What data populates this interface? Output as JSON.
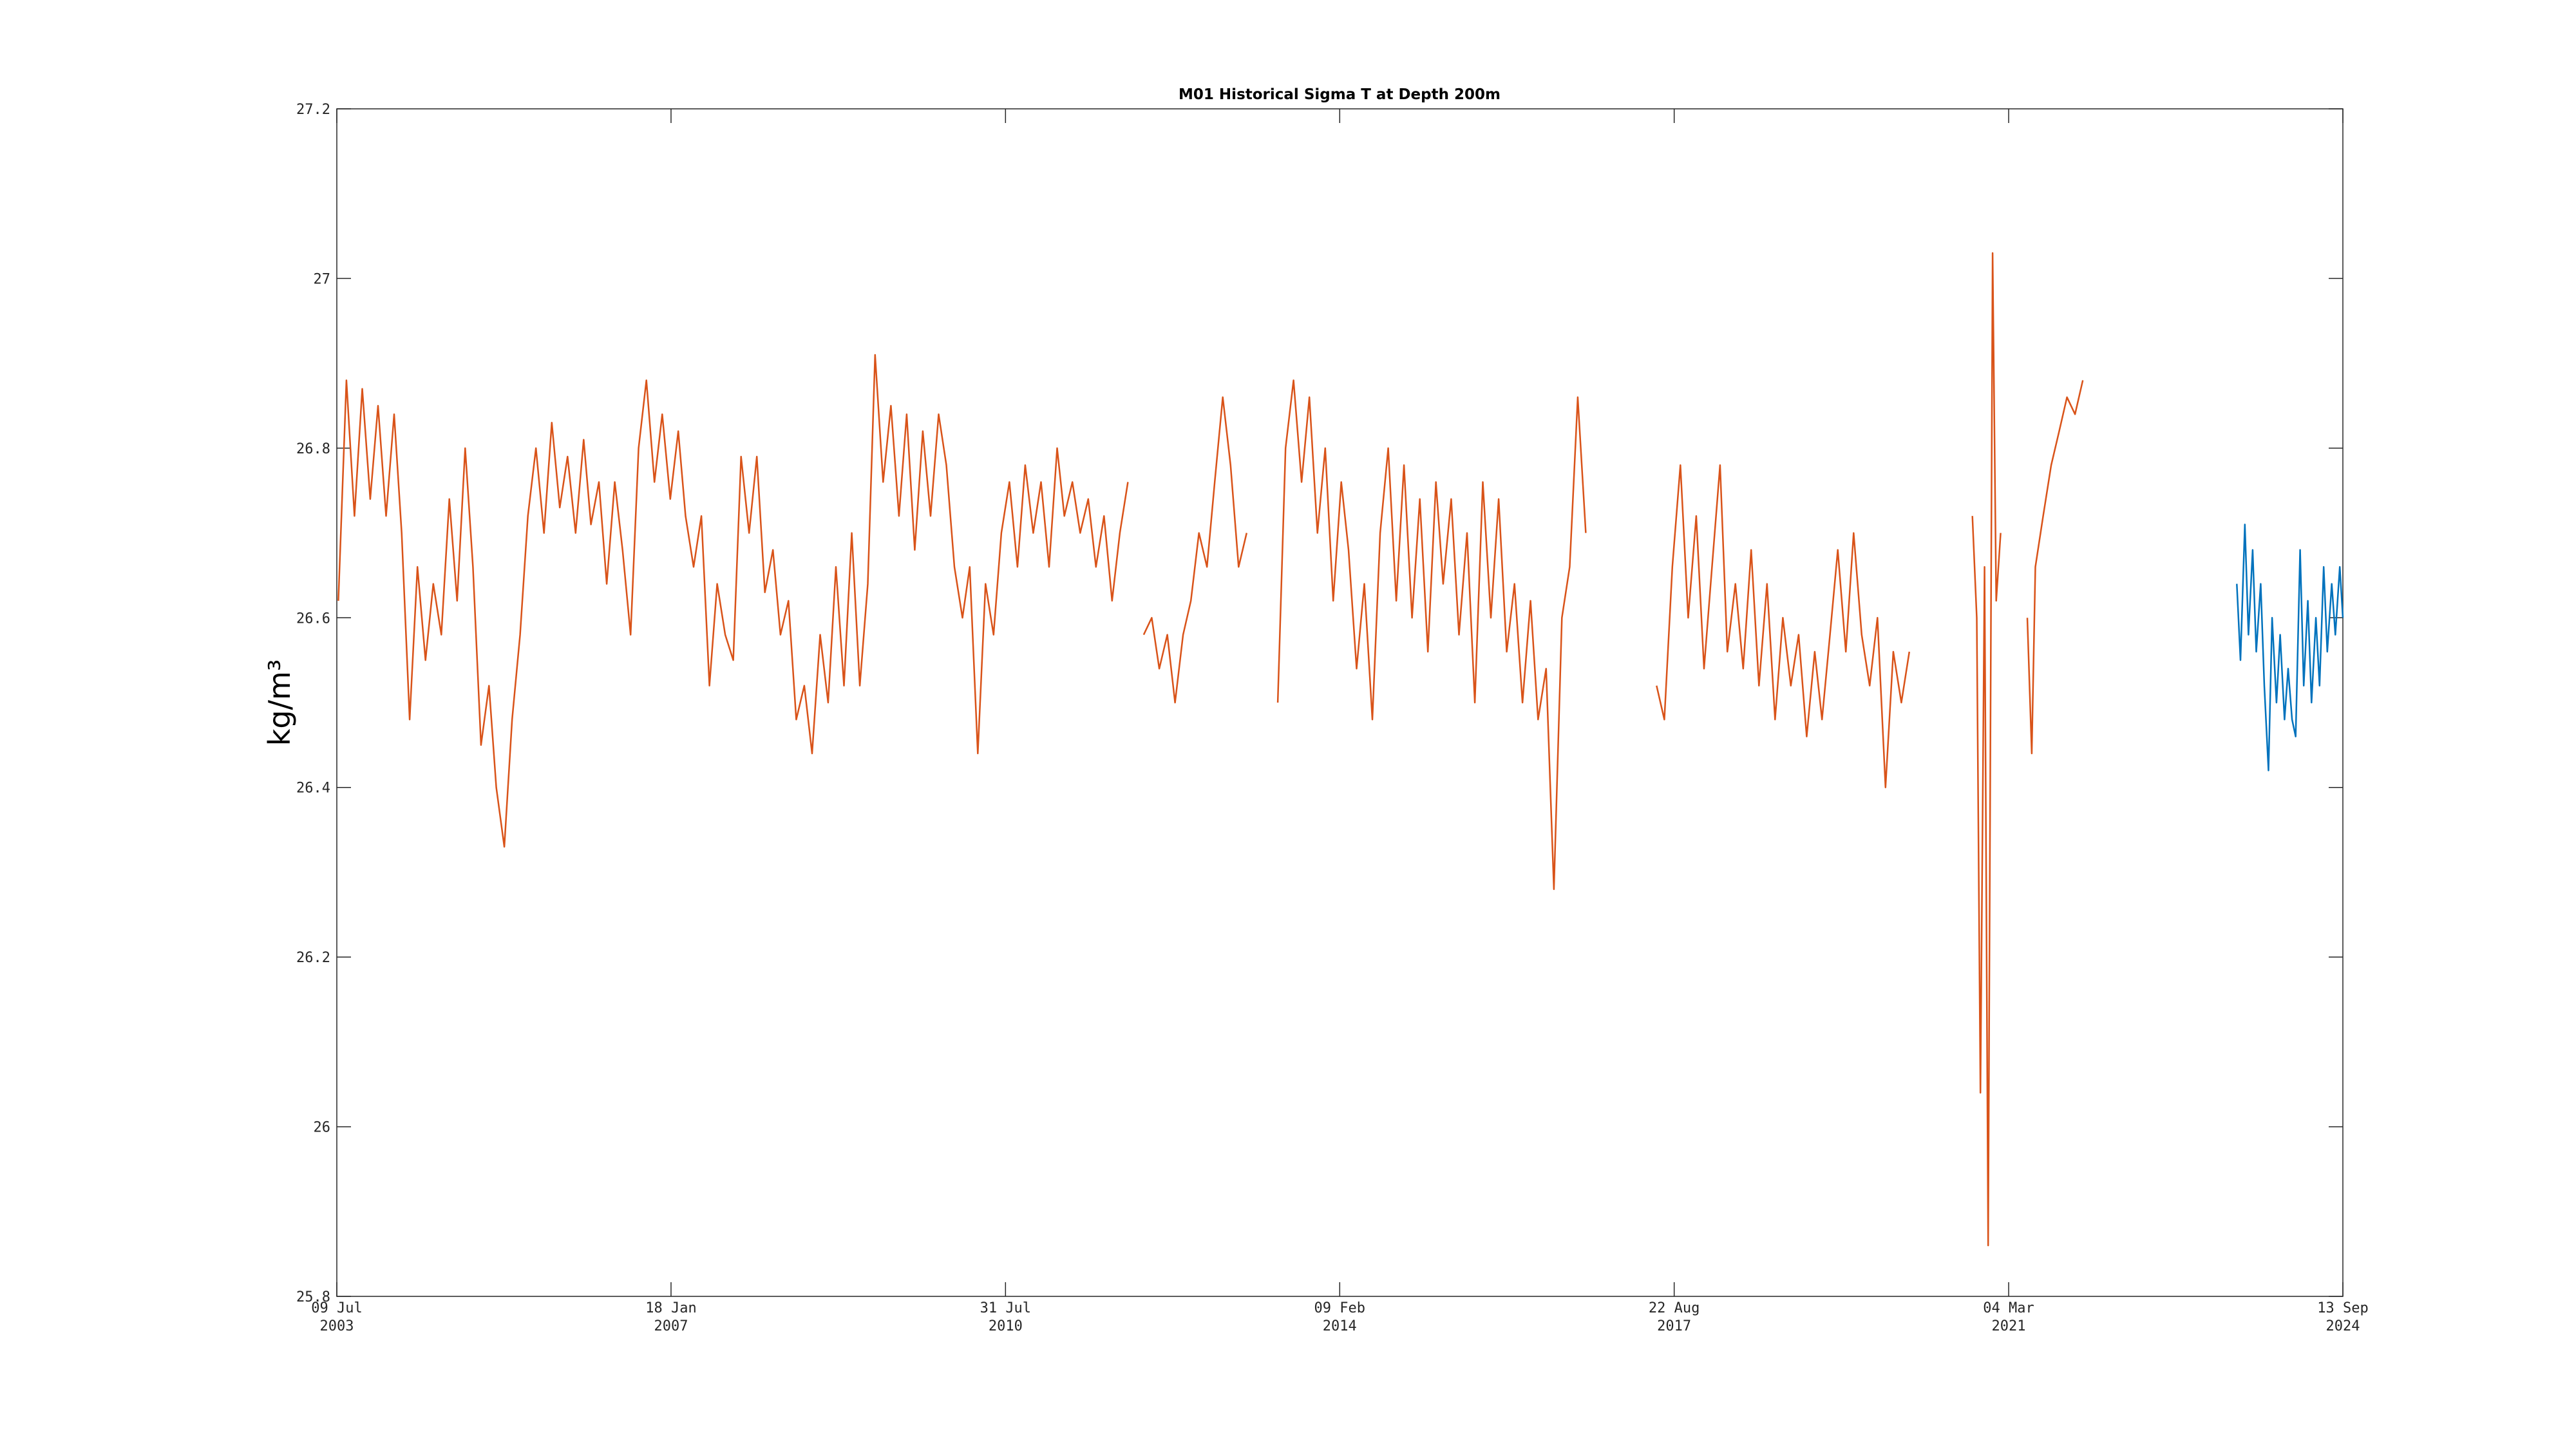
{
  "chart_data": {
    "type": "line",
    "title": "M01 Historical Sigma T at Depth 200m",
    "y_label": "kg/m³",
    "xlim": [
      "2003-07-09",
      "2024-09-13"
    ],
    "xticks": [
      {
        "value": "2003-07-09",
        "label": "09 Jul 2003"
      },
      {
        "value": "2007-01-18",
        "label": "18 Jan 2007"
      },
      {
        "value": "2010-07-31",
        "label": "31 Jul 2010"
      },
      {
        "value": "2014-02-09",
        "label": "09 Feb 2014"
      },
      {
        "value": "2017-08-22",
        "label": "22 Aug 2017"
      },
      {
        "value": "2021-03-04",
        "label": "04 Mar 2021"
      },
      {
        "value": "2024-09-13",
        "label": "13 Sep 2024"
      }
    ],
    "ylim": [
      25.8,
      27.2
    ],
    "yticks": [
      25.8,
      26,
      26.2,
      26.4,
      26.6,
      26.8,
      27,
      27.2
    ],
    "grid": false,
    "series": [
      {
        "color": "#d95319",
        "x": [
          "2003-07-15",
          "2003-08-15",
          "2003-09-15",
          "2003-10-15",
          "2003-11-15",
          "2003-12-15",
          "2004-01-15",
          "2004-02-15",
          "2004-03-15",
          "2004-04-15",
          "2004-05-15",
          "2004-06-15",
          "2004-07-15",
          "2004-08-15",
          "2004-09-15",
          "2004-10-15",
          "2004-11-15",
          "2004-12-15",
          "2005-01-15",
          "2005-02-15",
          "2005-03-15",
          "2005-04-15",
          "2005-05-15",
          "2005-06-15",
          "2005-07-15",
          "2005-08-15",
          "2005-09-15",
          "2005-10-15",
          "2005-11-15",
          "2005-12-15",
          "2006-01-15",
          "2006-02-15",
          "2006-03-15",
          "2006-04-15",
          "2006-05-15",
          "2006-06-15",
          "2006-07-15",
          "2006-08-15",
          "2006-09-15",
          "2006-10-15",
          "2006-11-15",
          "2006-12-15",
          "2007-01-15",
          "2007-02-15",
          "2007-03-15",
          "2007-04-15",
          "2007-05-15",
          "2007-06-15",
          "2007-07-15",
          "2007-08-15",
          "2007-09-15",
          "2007-10-15",
          "2007-11-15",
          "2007-12-15",
          "2008-01-15",
          "2008-02-15",
          "2008-03-15",
          "2008-04-15",
          "2008-05-15",
          "2008-06-15",
          "2008-07-15",
          "2008-08-15",
          "2008-09-15",
          "2008-10-15",
          "2008-11-15",
          "2008-12-15",
          "2009-01-15",
          "2009-02-15",
          "2009-03-15",
          "2009-04-15",
          "2009-05-15",
          "2009-06-15",
          "2009-07-15",
          "2009-08-15",
          "2009-09-15",
          "2009-10-15",
          "2009-11-15",
          "2009-12-15",
          "2010-01-15",
          "2010-02-15",
          "2010-03-15",
          "2010-04-15",
          "2010-05-15",
          "2010-06-15",
          "2010-07-15",
          "2010-08-15",
          "2010-09-15",
          "2010-10-15",
          "2010-11-15",
          "2010-12-15",
          "2011-01-15",
          "2011-02-15",
          "2011-03-15",
          "2011-04-15",
          "2011-05-15",
          "2011-06-15",
          "2011-07-15",
          "2011-08-15",
          "2011-09-15",
          "2011-10-15",
          "2011-11-15",
          "2011-12-15",
          "2012-01-15",
          "2012-02-15",
          "2012-03-15",
          "2012-04-15",
          "2012-05-15",
          "2012-06-15",
          "2012-07-15",
          "2012-08-15",
          "2012-09-15",
          "2012-10-15",
          "2012-11-15",
          "2012-12-15",
          "2013-01-15",
          "2013-02-15",
          "2013-04-15",
          "2013-06-15",
          "2013-07-15",
          "2013-08-15",
          "2013-09-15",
          "2013-10-15",
          "2013-11-15",
          "2013-12-15",
          "2014-01-15",
          "2014-02-15",
          "2014-03-15",
          "2014-04-15",
          "2014-05-15",
          "2014-06-15",
          "2014-07-15",
          "2014-08-15",
          "2014-09-15",
          "2014-10-15",
          "2014-11-15",
          "2014-12-15",
          "2015-01-15",
          "2015-02-15",
          "2015-03-15",
          "2015-04-15",
          "2015-05-15",
          "2015-06-15",
          "2015-07-15",
          "2015-08-15",
          "2015-09-15",
          "2015-10-15",
          "2015-11-15",
          "2015-12-15",
          "2016-01-15",
          "2016-02-15",
          "2016-03-15",
          "2016-04-15",
          "2016-05-15",
          "2016-06-15",
          "2016-07-15",
          "2016-08-15",
          "2016-09-15",
          "2017-01-15",
          "2017-06-15",
          "2017-07-15",
          "2017-08-15",
          "2017-09-15",
          "2017-10-15",
          "2017-11-15",
          "2017-12-15",
          "2018-01-15",
          "2018-02-15",
          "2018-03-15",
          "2018-04-15",
          "2018-05-15",
          "2018-06-15",
          "2018-07-15",
          "2018-08-15",
          "2018-09-15",
          "2018-10-15",
          "2018-11-15",
          "2018-12-15",
          "2019-01-15",
          "2019-02-15",
          "2019-03-15",
          "2019-04-15",
          "2019-05-15",
          "2019-06-15",
          "2019-07-15",
          "2019-08-15",
          "2019-09-15",
          "2019-10-15",
          "2019-11-15",
          "2019-12-15",
          "2020-01-15",
          "2020-02-15",
          "2020-06-15",
          "2020-10-15",
          "2020-11-01",
          "2020-11-15",
          "2020-12-01",
          "2020-12-15",
          "2021-01-01",
          "2021-01-15",
          "2021-02-01",
          "2021-03-15",
          "2021-05-15",
          "2021-06-01",
          "2021-06-15",
          "2021-07-15",
          "2021-08-15",
          "2021-09-15",
          "2021-10-15",
          "2021-11-15",
          "2021-12-15"
        ],
        "values": [
          26.62,
          26.88,
          26.72,
          26.87,
          26.74,
          26.85,
          26.72,
          26.84,
          26.7,
          26.48,
          26.66,
          26.55,
          26.64,
          26.58,
          26.74,
          26.62,
          26.8,
          26.66,
          26.45,
          26.52,
          26.4,
          26.33,
          26.48,
          26.58,
          26.72,
          26.8,
          26.7,
          26.83,
          26.73,
          26.79,
          26.7,
          26.81,
          26.71,
          26.76,
          26.64,
          26.76,
          26.68,
          26.58,
          26.8,
          26.88,
          26.76,
          26.84,
          26.74,
          26.82,
          26.72,
          26.66,
          26.72,
          26.52,
          26.64,
          26.58,
          26.55,
          26.79,
          26.7,
          26.79,
          26.63,
          26.68,
          26.58,
          26.62,
          26.48,
          26.52,
          26.44,
          26.58,
          26.5,
          26.66,
          26.52,
          26.7,
          26.52,
          26.64,
          26.91,
          26.76,
          26.85,
          26.72,
          26.84,
          26.68,
          26.82,
          26.72,
          26.84,
          26.78,
          26.66,
          26.6,
          26.66,
          26.44,
          26.64,
          26.58,
          26.7,
          26.76,
          26.66,
          26.78,
          26.7,
          26.76,
          26.66,
          26.8,
          26.72,
          26.76,
          26.7,
          26.74,
          26.66,
          26.72,
          26.62,
          26.7,
          26.76,
          null,
          26.58,
          26.6,
          26.54,
          26.58,
          26.5,
          26.58,
          26.62,
          26.7,
          26.66,
          26.76,
          26.86,
          26.78,
          26.66,
          26.7,
          null,
          26.5,
          26.8,
          26.88,
          26.76,
          26.86,
          26.7,
          26.8,
          26.62,
          26.76,
          26.68,
          26.54,
          26.64,
          26.48,
          26.7,
          26.8,
          26.62,
          26.78,
          26.6,
          26.74,
          26.56,
          26.76,
          26.64,
          26.74,
          26.58,
          26.7,
          26.5,
          26.76,
          26.6,
          26.74,
          26.56,
          26.64,
          26.5,
          26.62,
          26.48,
          26.54,
          26.28,
          26.6,
          26.66,
          26.86,
          26.7,
          null,
          26.52,
          26.48,
          26.66,
          26.78,
          26.6,
          26.72,
          26.54,
          26.66,
          26.78,
          26.56,
          26.64,
          26.54,
          26.68,
          26.52,
          26.64,
          26.48,
          26.6,
          26.52,
          26.58,
          26.46,
          26.56,
          26.48,
          26.58,
          26.68,
          26.56,
          26.7,
          26.58,
          26.52,
          26.6,
          26.4,
          26.56,
          26.5,
          26.56,
          null,
          26.72,
          26.6,
          26.04,
          26.66,
          25.86,
          27.03,
          26.62,
          26.7,
          null,
          26.6,
          26.44,
          26.66,
          26.72,
          26.78,
          26.82,
          26.86,
          26.84,
          26.88
        ]
      },
      {
        "color": "#0072bd",
        "x": [
          "2023-08-01",
          "2023-08-15",
          "2023-09-01",
          "2023-09-15",
          "2023-10-01",
          "2023-10-15",
          "2023-11-01",
          "2023-11-15",
          "2023-12-01",
          "2023-12-15",
          "2024-01-01",
          "2024-01-15",
          "2024-02-01",
          "2024-02-15",
          "2024-03-01",
          "2024-03-15",
          "2024-04-01",
          "2024-04-15",
          "2024-05-01",
          "2024-05-15",
          "2024-06-01",
          "2024-06-15",
          "2024-07-01",
          "2024-07-15",
          "2024-08-01",
          "2024-08-15",
          "2024-09-01",
          "2024-09-13"
        ],
        "values": [
          26.64,
          26.55,
          26.71,
          26.58,
          26.68,
          26.56,
          26.64,
          26.52,
          26.42,
          26.6,
          26.5,
          26.58,
          26.48,
          26.54,
          26.48,
          26.46,
          26.68,
          26.52,
          26.62,
          26.5,
          26.6,
          26.52,
          26.66,
          26.56,
          26.64,
          26.58,
          26.66,
          26.6
        ]
      }
    ]
  }
}
